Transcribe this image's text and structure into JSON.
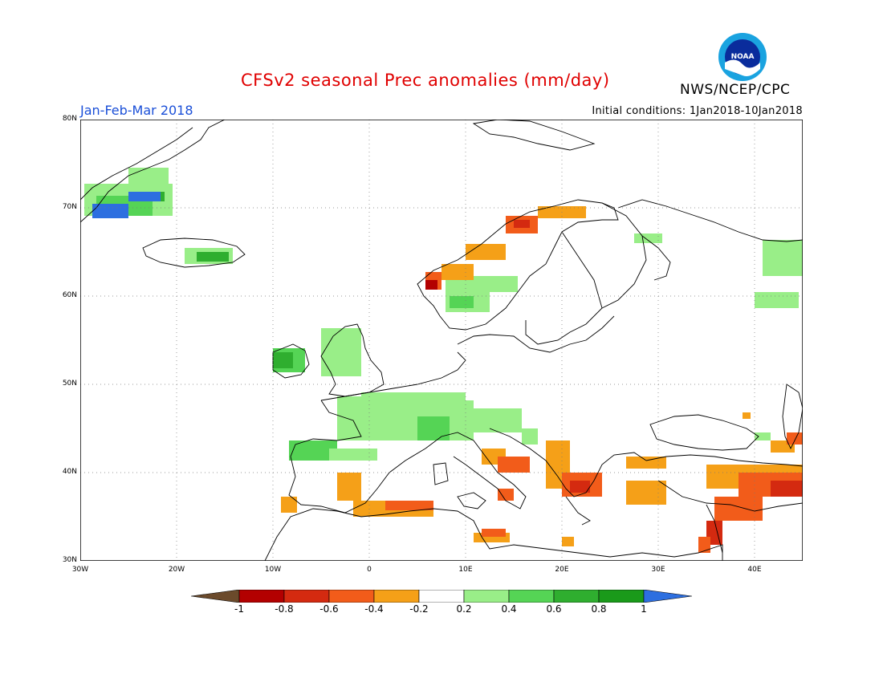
{
  "header": {
    "title": "CFSv2 seasonal Prec anomalies (mm/day)",
    "period": "Jan-Feb-Mar 2018",
    "initial_conditions": "Initial conditions: 1Jan2018-10Jan2018",
    "org": "NWS/NCEP/CPC",
    "logo_text": "NOAA"
  },
  "map": {
    "lat_range": [
      30,
      80
    ],
    "lon_range": [
      -30,
      45
    ],
    "lat_labels": [
      "80N",
      "70N",
      "60N",
      "50N",
      "40N",
      "30N"
    ],
    "lon_labels": [
      "30W",
      "20W",
      "10W",
      "0",
      "10E",
      "20E",
      "30E",
      "40E"
    ],
    "grid_style": "dotted"
  },
  "colorbar": {
    "labels": [
      "-1",
      "-0.8",
      "-0.6",
      "-0.4",
      "-0.2",
      "0.2",
      "0.4",
      "0.6",
      "0.8",
      "1"
    ],
    "colors": {
      "lt_-1": "#6b4a2b",
      "-1_-0.8": "#b30000",
      "-0.8_-0.6": "#d42a10",
      "-0.6_-0.4": "#f25c1a",
      "-0.4_-0.2": "#f5a018",
      "-0.2_0.2": "#ffffff",
      "0.2_0.4": "#99ee88",
      "0.4_0.6": "#55d455",
      "0.6_0.8": "#2fae2f",
      "0.8_1": "#1a9a1a",
      "gt_1": "#2d6fe0"
    }
  }
}
